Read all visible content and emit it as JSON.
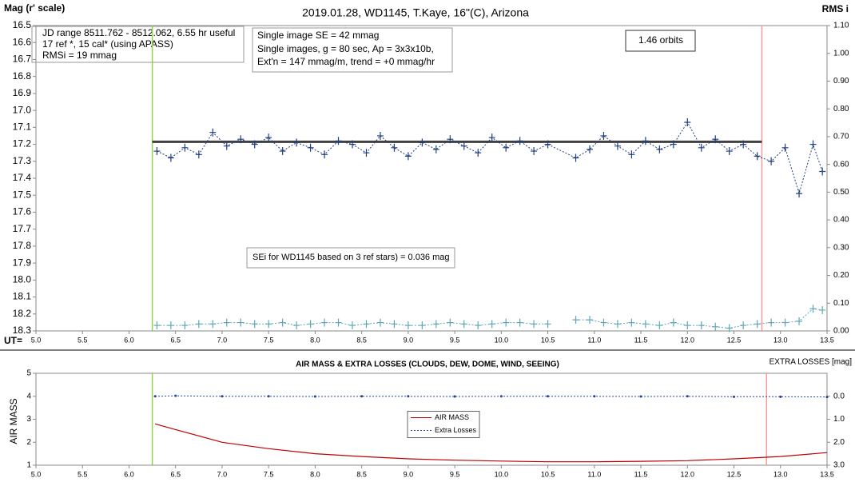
{
  "chart_data": [
    {
      "type": "scatter",
      "title": "2019.01.28, WD1145, T.Kaye, 16\"(C), Arizona",
      "ylabel": "Mag (r' scale)",
      "y2label": "RMS i",
      "xlabel": "UT=",
      "xlim": [
        5,
        13.5
      ],
      "xticks": [
        {
          "value": 5,
          "label": "5.0"
        },
        5.5,
        {
          "value": 6,
          "label": "6.0"
        },
        6.5,
        {
          "value": 7,
          "label": "7.0"
        },
        7.5,
        {
          "value": 8,
          "label": "8.0"
        },
        8.5,
        {
          "value": 9,
          "label": "9.0"
        },
        9.5,
        {
          "value": 10,
          "label": "10.0"
        },
        10.5,
        {
          "value": 11,
          "label": "11.0"
        },
        11.5,
        {
          "value": 12,
          "label": "12.0"
        },
        12.5,
        {
          "value": 13,
          "label": "13.0"
        },
        13.5
      ],
      "ylim": [
        18.3,
        16.5
      ],
      "yticks": [
        16.5,
        16.6,
        16.7,
        16.8,
        16.9,
        {
          "value": 17,
          "label": "17.0"
        },
        17.1,
        17.2,
        17.3,
        17.4,
        17.5,
        17.6,
        17.7,
        17.8,
        17.9,
        {
          "value": 18,
          "label": "18.0"
        },
        18.1,
        18.2,
        18.3
      ],
      "y2lim": [
        0,
        1.1
      ],
      "y2ticks": [
        {
          "value": 0,
          "label": "0.00"
        },
        {
          "value": 0.1,
          "label": "0.10"
        },
        {
          "value": 0.2,
          "label": "0.20"
        },
        {
          "value": 0.3,
          "label": "0.30"
        },
        {
          "value": 0.4,
          "label": "0.40"
        },
        {
          "value": 0.5,
          "label": "0.50"
        },
        {
          "value": 0.6,
          "label": "0.60"
        },
        {
          "value": 0.7,
          "label": "0.70"
        },
        {
          "value": 0.8,
          "label": "0.80"
        },
        {
          "value": 0.9,
          "label": "0.90"
        },
        {
          "value": 1,
          "label": "1.00"
        },
        {
          "value": 1.1,
          "label": "1.10"
        }
      ],
      "grid": false,
      "annotations": [
        "JD range 8511.762 - 8512.062, 6.55 hr useful",
        "17 ref *, 15 cal* (using APASS)",
        "RMSi = 19 mmag",
        "Single image SE = 42 mmag",
        "Single images, g = 80 sec, Ap = 3x3x10b,",
        "Ext'n = 147 mmag/m, trend = +0 mmag/hr",
        "1.46 orbits",
        "SEi for WD1145 based on 3 ref stars) = 0.036 mag"
      ],
      "vlines": [
        {
          "x": 6.25,
          "color": "#92d050"
        },
        {
          "x": 12.8,
          "color": "#ff9999"
        }
      ],
      "hlines": [
        {
          "y": 17.185,
          "x": [
            6.25,
            12.8
          ],
          "color": "#404040"
        }
      ],
      "series": [
        {
          "color": "#1f3f7f",
          "line": "dotted",
          "marker": "plus",
          "x": [
            6.3,
            6.45,
            6.6,
            6.75,
            6.9,
            7.05,
            7.2,
            7.35,
            7.5,
            7.65,
            7.8,
            7.95,
            8.1,
            8.25,
            8.4,
            8.55,
            8.7,
            8.85,
            9.0,
            9.15,
            9.3,
            9.45,
            9.6,
            9.75,
            9.9,
            10.05,
            10.2,
            10.35,
            10.5,
            10.8,
            10.95,
            11.1,
            11.25,
            11.4,
            11.55,
            11.7,
            11.85,
            12.0,
            12.15,
            12.3,
            12.45,
            12.6,
            12.75,
            12.9,
            13.05,
            13.2,
            13.35,
            13.45
          ],
          "values": [
            17.24,
            17.28,
            17.22,
            17.26,
            17.13,
            17.21,
            17.17,
            17.2,
            17.16,
            17.24,
            17.19,
            17.22,
            17.26,
            17.18,
            17.2,
            17.25,
            17.15,
            17.22,
            17.27,
            17.19,
            17.23,
            17.17,
            17.21,
            17.25,
            17.16,
            17.22,
            17.18,
            17.24,
            17.2,
            17.28,
            17.23,
            17.15,
            17.21,
            17.26,
            17.18,
            17.23,
            17.2,
            17.07,
            17.22,
            17.17,
            17.24,
            17.2,
            17.27,
            17.3,
            17.22,
            17.49,
            17.2,
            17.36
          ]
        },
        {
          "color": "#5fa7b5",
          "line": "dotted",
          "marker": "plus",
          "axis": "y2",
          "x": [
            6.3,
            6.45,
            6.6,
            6.75,
            6.9,
            7.05,
            7.2,
            7.35,
            7.5,
            7.65,
            7.8,
            7.95,
            8.1,
            8.25,
            8.4,
            8.55,
            8.7,
            8.85,
            9.0,
            9.15,
            9.3,
            9.45,
            9.6,
            9.75,
            9.9,
            10.05,
            10.2,
            10.35,
            10.5,
            10.65,
            10.8,
            10.95,
            11.1,
            11.25,
            11.4,
            11.55,
            11.7,
            11.85,
            12.0,
            12.15,
            12.3,
            12.45,
            12.6,
            12.75,
            12.9,
            13.05,
            13.2,
            13.35,
            13.45
          ],
          "values": [
            0.02,
            0.02,
            0.02,
            0.025,
            0.025,
            0.03,
            0.03,
            0.025,
            0.025,
            0.03,
            0.02,
            0.025,
            0.03,
            0.03,
            0.02,
            0.025,
            0.03,
            0.025,
            0.02,
            0.02,
            0.025,
            0.03,
            0.025,
            0.02,
            0.025,
            0.03,
            0.03,
            0.025,
            0.025,
            null,
            0.04,
            0.04,
            0.03,
            0.025,
            0.03,
            0.025,
            0.02,
            0.03,
            0.02,
            0.02,
            0.015,
            0.01,
            0.02,
            0.025,
            0.03,
            0.03,
            0.035,
            0.08,
            0.075
          ]
        }
      ]
    },
    {
      "type": "line",
      "title": "AIR MASS & EXTRA LOSSES (CLOUDS, DEW, DOME, WIND, SEEING)",
      "ylabel": "AIR MASS",
      "y2label": "EXTRA LOSSES [mag]",
      "xlim": [
        5,
        13.5
      ],
      "xticks": [
        {
          "value": 5,
          "label": "5.0"
        },
        5.5,
        {
          "value": 6,
          "label": "6.0"
        },
        6.5,
        {
          "value": 7,
          "label": "7.0"
        },
        7.5,
        {
          "value": 8,
          "label": "8.0"
        },
        8.5,
        {
          "value": 9,
          "label": "9.0"
        },
        9.5,
        {
          "value": 10,
          "label": "10.0"
        },
        10.5,
        {
          "value": 11,
          "label": "11.0"
        },
        11.5,
        {
          "value": 12,
          "label": "12.0"
        },
        12.5,
        {
          "value": 13,
          "label": "13.0"
        },
        13.5
      ],
      "ylim": [
        1,
        5
      ],
      "yticks": [
        1,
        2,
        3,
        4,
        5
      ],
      "y2lim": [
        3,
        -1
      ],
      "y2ticks": [
        {
          "value": 0,
          "label": "0.0"
        },
        {
          "value": 1,
          "label": "1.0"
        },
        {
          "value": 2,
          "label": "2.0"
        },
        {
          "value": 3,
          "label": "3.0"
        }
      ],
      "grid": false,
      "legend": "center",
      "vlines": [
        {
          "x": 6.25,
          "color": "#92d050"
        },
        {
          "x": 12.85,
          "color": "#ff9999"
        }
      ],
      "series": [
        {
          "name": "AIR MASS",
          "color": "#c00000",
          "line": "solid",
          "marker": "none",
          "x": [
            6.28,
            6.5,
            7.0,
            7.5,
            8.0,
            8.5,
            9.0,
            9.5,
            10.0,
            10.5,
            11.0,
            11.5,
            12.0,
            12.5,
            13.0,
            13.5
          ],
          "values": [
            2.8,
            2.55,
            2.0,
            1.72,
            1.5,
            1.38,
            1.28,
            1.22,
            1.18,
            1.15,
            1.15,
            1.17,
            1.2,
            1.28,
            1.38,
            1.55
          ]
        },
        {
          "name": "Extra Losses",
          "color": "#1f3f9f",
          "line": "dotted",
          "marker": "dot",
          "axis": "y2",
          "x": [
            6.28,
            6.5,
            7.0,
            7.5,
            8.0,
            8.5,
            9.0,
            9.5,
            10.0,
            10.5,
            11.0,
            11.5,
            12.0,
            12.5,
            13.0,
            13.5
          ],
          "values": [
            0.0,
            -0.02,
            0.0,
            0.0,
            0.01,
            0.0,
            0.0,
            0.01,
            0.0,
            0.0,
            0.0,
            0.01,
            0.0,
            0.02,
            0.02,
            0.03
          ]
        }
      ]
    }
  ]
}
